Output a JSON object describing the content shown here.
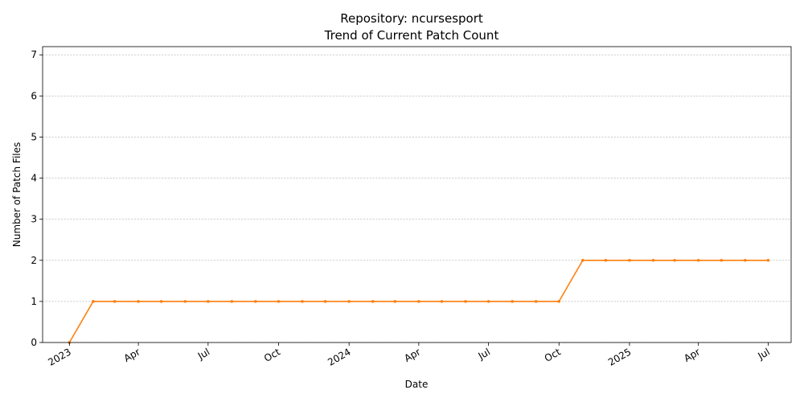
{
  "chart_data": {
    "type": "line",
    "title_line1": "Repository: ncursesport",
    "title_line2": "Trend of Current Patch Count",
    "xlabel": "Date",
    "ylabel": "Number of Patch Files",
    "ylim": [
      0,
      7.2
    ],
    "xlim": [
      "2022-11-27",
      "2025-07-31"
    ],
    "grid": "y-dashed",
    "y_ticks": [
      "0",
      "1",
      "2",
      "3",
      "4",
      "5",
      "6",
      "7"
    ],
    "x_ticks": [
      {
        "label": "2023",
        "date": "2023-01-01"
      },
      {
        "label": "Apr",
        "date": "2023-04-01"
      },
      {
        "label": "Jul",
        "date": "2023-07-01"
      },
      {
        "label": "Oct",
        "date": "2023-10-01"
      },
      {
        "label": "2024",
        "date": "2024-01-01"
      },
      {
        "label": "Apr",
        "date": "2024-04-01"
      },
      {
        "label": "Jul",
        "date": "2024-07-01"
      },
      {
        "label": "Oct",
        "date": "2024-10-01"
      },
      {
        "label": "2025",
        "date": "2025-01-01"
      },
      {
        "label": "Apr",
        "date": "2025-04-01"
      },
      {
        "label": "Jul",
        "date": "2025-07-01"
      }
    ],
    "series": [
      {
        "color": "#ff7f0e",
        "points": [
          {
            "x": "2023-01-01",
            "y": 0
          },
          {
            "x": "2023-02-01",
            "y": 1
          },
          {
            "x": "2023-03-01",
            "y": 1
          },
          {
            "x": "2023-04-01",
            "y": 1
          },
          {
            "x": "2023-05-01",
            "y": 1
          },
          {
            "x": "2023-06-01",
            "y": 1
          },
          {
            "x": "2023-07-01",
            "y": 1
          },
          {
            "x": "2023-08-01",
            "y": 1
          },
          {
            "x": "2023-09-01",
            "y": 1
          },
          {
            "x": "2023-10-01",
            "y": 1
          },
          {
            "x": "2023-11-01",
            "y": 1
          },
          {
            "x": "2023-12-01",
            "y": 1
          },
          {
            "x": "2024-01-01",
            "y": 1
          },
          {
            "x": "2024-02-01",
            "y": 1
          },
          {
            "x": "2024-03-01",
            "y": 1
          },
          {
            "x": "2024-04-01",
            "y": 1
          },
          {
            "x": "2024-05-01",
            "y": 1
          },
          {
            "x": "2024-06-01",
            "y": 1
          },
          {
            "x": "2024-07-01",
            "y": 1
          },
          {
            "x": "2024-08-01",
            "y": 1
          },
          {
            "x": "2024-09-01",
            "y": 1
          },
          {
            "x": "2024-10-01",
            "y": 1
          },
          {
            "x": "2024-11-01",
            "y": 2
          },
          {
            "x": "2024-12-01",
            "y": 2
          },
          {
            "x": "2025-01-01",
            "y": 2
          },
          {
            "x": "2025-02-01",
            "y": 2
          },
          {
            "x": "2025-03-01",
            "y": 2
          },
          {
            "x": "2025-04-01",
            "y": 2
          },
          {
            "x": "2025-05-01",
            "y": 2
          },
          {
            "x": "2025-06-01",
            "y": 2
          },
          {
            "x": "2025-07-01",
            "y": 2
          }
        ]
      }
    ]
  }
}
